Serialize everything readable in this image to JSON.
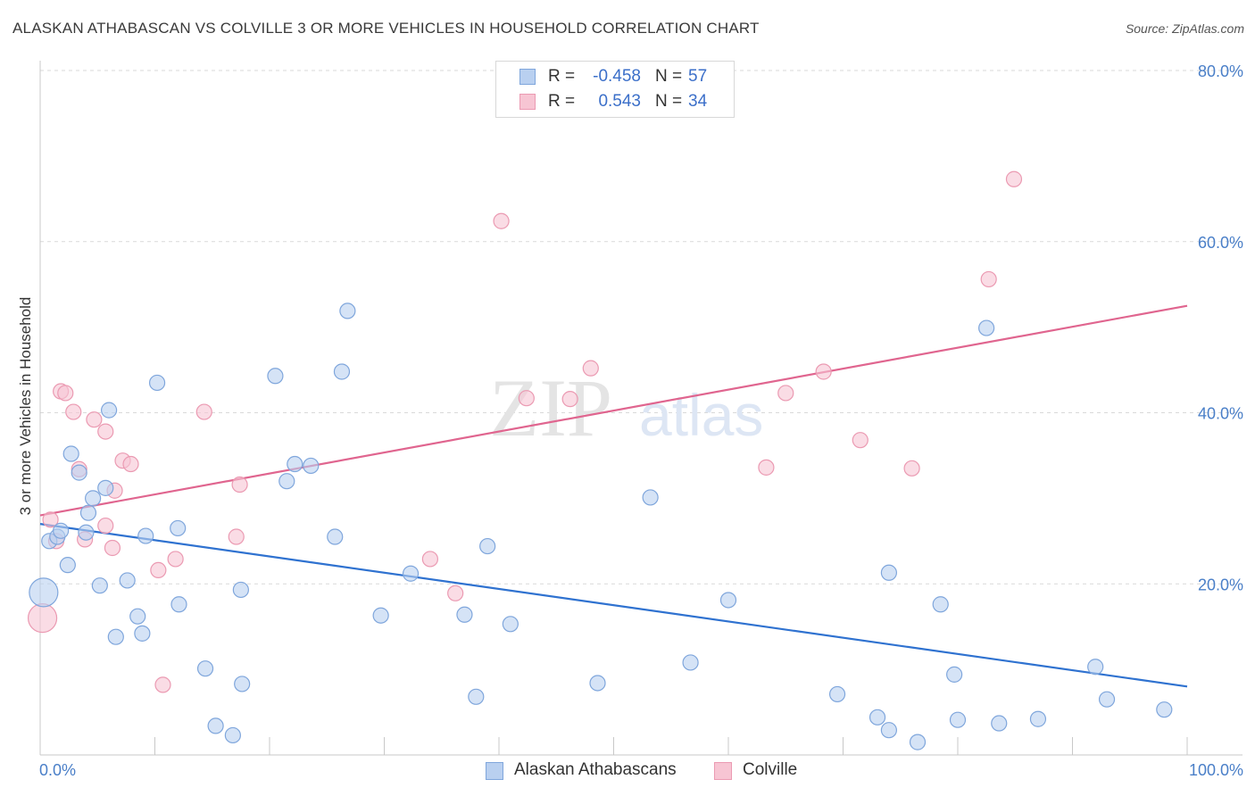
{
  "title": "ALASKAN ATHABASCAN VS COLVILLE 3 OR MORE VEHICLES IN HOUSEHOLD CORRELATION CHART",
  "source": "Source: ZipAtlas.com",
  "watermark": {
    "zip": "ZIP",
    "atlas": "atlas"
  },
  "legend": {
    "rows": [
      {
        "r_label": "R =",
        "r_value": "-0.458",
        "n_label": "N =",
        "n_value": "57"
      },
      {
        "r_label": "R =",
        "r_value": "0.543",
        "n_label": "N =",
        "n_value": "34"
      }
    ]
  },
  "bottom_legend": {
    "series1": "Alaskan Athabascans",
    "series2": "Colville"
  },
  "colors": {
    "blue_fill": "#b9d0f0",
    "blue_stroke": "#7fa6dc",
    "blue_line": "#2f72d0",
    "pink_fill": "#f7c5d3",
    "pink_stroke": "#eb9ab2",
    "pink_line": "#e0658f",
    "grid": "#d9d9d9",
    "axis_text": "#4a7fc8"
  },
  "chart_data": {
    "type": "scatter",
    "title": "ALASKAN ATHABASCAN VS COLVILLE 3 OR MORE VEHICLES IN HOUSEHOLD CORRELATION CHART",
    "xlabel": "",
    "ylabel": "3 or more Vehicles in Household",
    "xlim": [
      0,
      100
    ],
    "ylim": [
      0,
      80
    ],
    "x_tick_labels": [
      "0.0%",
      "100.0%"
    ],
    "y_ticks": [
      20,
      40,
      60,
      80
    ],
    "y_tick_labels": [
      "20.0%",
      "40.0%",
      "60.0%",
      "80.0%"
    ],
    "grid": "dashed horizontal",
    "legend_position": "top-center",
    "series": [
      {
        "name": "Alaskan Athabascans",
        "r": -0.458,
        "n": 57,
        "trend": {
          "x": [
            0,
            100
          ],
          "y": [
            27.0,
            8.0
          ]
        },
        "points": [
          [
            0.3,
            19.0
          ],
          [
            0.8,
            25.0
          ],
          [
            1.5,
            25.5
          ],
          [
            1.8,
            26.2
          ],
          [
            2.4,
            22.2
          ],
          [
            2.7,
            35.2
          ],
          [
            3.4,
            33.0
          ],
          [
            4.0,
            26.0
          ],
          [
            4.2,
            28.3
          ],
          [
            4.6,
            30.0
          ],
          [
            5.2,
            19.8
          ],
          [
            5.7,
            31.2
          ],
          [
            6.0,
            40.3
          ],
          [
            6.6,
            13.8
          ],
          [
            7.6,
            20.4
          ],
          [
            8.5,
            16.2
          ],
          [
            8.9,
            14.2
          ],
          [
            9.2,
            25.6
          ],
          [
            10.2,
            43.5
          ],
          [
            12.0,
            26.5
          ],
          [
            12.1,
            17.6
          ],
          [
            14.4,
            10.1
          ],
          [
            15.3,
            3.4
          ],
          [
            16.8,
            2.3
          ],
          [
            17.5,
            19.3
          ],
          [
            17.6,
            8.3
          ],
          [
            20.5,
            44.3
          ],
          [
            21.5,
            32.0
          ],
          [
            22.2,
            34.0
          ],
          [
            23.6,
            33.8
          ],
          [
            25.7,
            25.5
          ],
          [
            26.3,
            44.8
          ],
          [
            26.8,
            51.9
          ],
          [
            29.7,
            16.3
          ],
          [
            32.3,
            21.2
          ],
          [
            37.0,
            16.4
          ],
          [
            38.0,
            6.8
          ],
          [
            39.0,
            24.4
          ],
          [
            41.0,
            15.3
          ],
          [
            48.6,
            8.4
          ],
          [
            53.2,
            30.1
          ],
          [
            56.7,
            10.8
          ],
          [
            60.0,
            18.1
          ],
          [
            69.5,
            7.1
          ],
          [
            73.0,
            4.4
          ],
          [
            74.0,
            2.9
          ],
          [
            74.0,
            21.3
          ],
          [
            76.5,
            1.5
          ],
          [
            78.5,
            17.6
          ],
          [
            79.7,
            9.4
          ],
          [
            80.0,
            4.1
          ],
          [
            82.5,
            49.9
          ],
          [
            83.6,
            3.7
          ],
          [
            87.0,
            4.2
          ],
          [
            92.0,
            10.3
          ],
          [
            93.0,
            6.5
          ],
          [
            98.0,
            5.3
          ]
        ]
      },
      {
        "name": "Colville",
        "r": 0.543,
        "n": 34,
        "trend": {
          "x": [
            0,
            100
          ],
          "y": [
            28.0,
            52.5
          ]
        },
        "points": [
          [
            0.2,
            16.0
          ],
          [
            0.9,
            27.5
          ],
          [
            1.4,
            25.0
          ],
          [
            1.8,
            42.5
          ],
          [
            2.2,
            42.3
          ],
          [
            2.9,
            40.1
          ],
          [
            3.4,
            33.4
          ],
          [
            3.9,
            25.2
          ],
          [
            4.7,
            39.2
          ],
          [
            5.7,
            37.8
          ],
          [
            5.7,
            26.8
          ],
          [
            6.3,
            24.2
          ],
          [
            6.5,
            30.9
          ],
          [
            7.2,
            34.4
          ],
          [
            7.9,
            34.0
          ],
          [
            10.3,
            21.6
          ],
          [
            10.7,
            8.2
          ],
          [
            11.8,
            22.9
          ],
          [
            14.3,
            40.1
          ],
          [
            17.1,
            25.5
          ],
          [
            17.4,
            31.6
          ],
          [
            34.0,
            22.9
          ],
          [
            36.2,
            18.9
          ],
          [
            40.2,
            62.4
          ],
          [
            42.4,
            41.7
          ],
          [
            46.2,
            41.6
          ],
          [
            48.0,
            45.2
          ],
          [
            63.3,
            33.6
          ],
          [
            65.0,
            42.3
          ],
          [
            68.3,
            44.8
          ],
          [
            71.5,
            36.8
          ],
          [
            76.0,
            33.5
          ],
          [
            82.7,
            55.6
          ],
          [
            84.9,
            67.3
          ]
        ]
      }
    ]
  }
}
